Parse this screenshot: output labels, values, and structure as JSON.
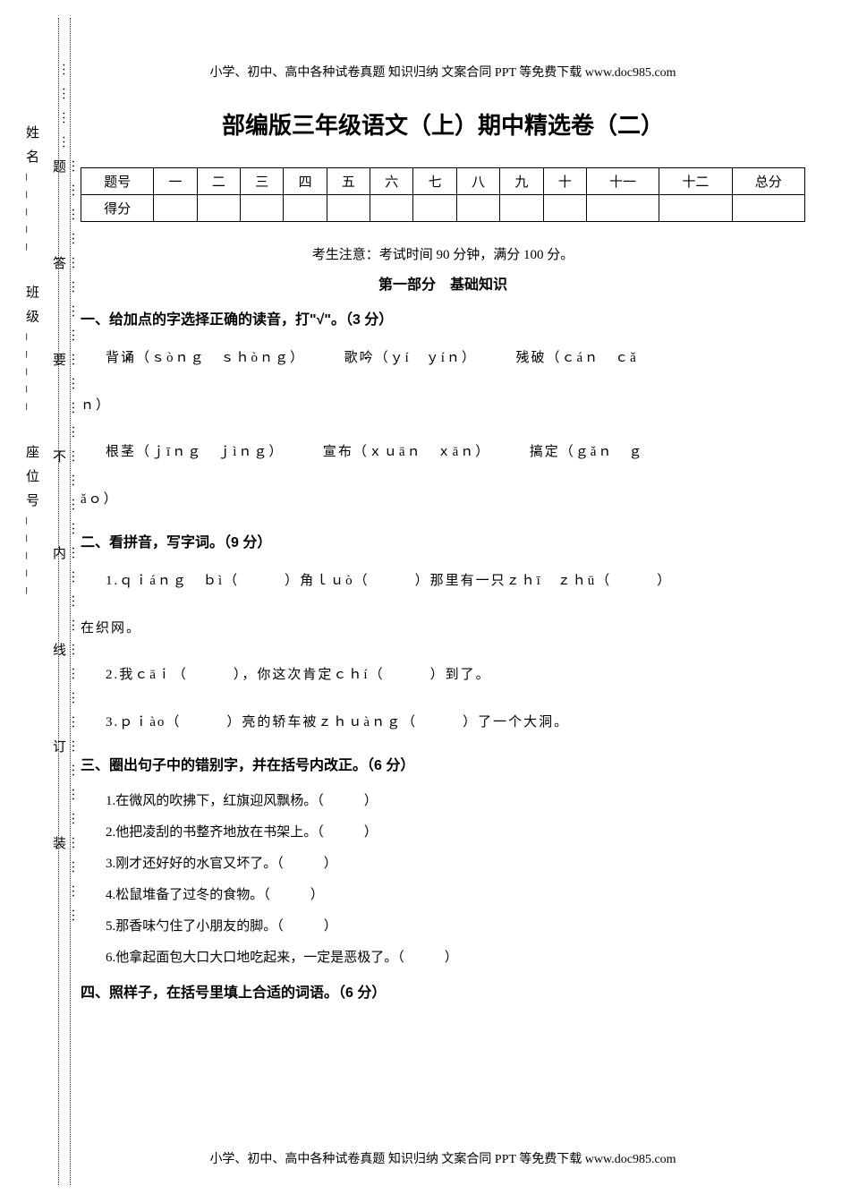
{
  "header": "小学、初中、高中各种试卷真题 知识归纳 文案合同 PPT 等免费下载  www.doc985.com",
  "title": "部编版三年级语文（上）期中精选卷（二）",
  "score_table": {
    "row1": [
      "题号",
      "一",
      "二",
      "三",
      "四",
      "五",
      "六",
      "七",
      "八",
      "九",
      "十",
      "十一",
      "十二",
      "总分"
    ],
    "row2_label": "得分"
  },
  "exam_notice": "考生注意：考试时间 90 分钟，满分 100 分。",
  "section1_title": "第一部分　基础知识",
  "q1": {
    "header": "一、给加点的字选择正确的读音，打\"√\"。（3 分）",
    "line1_a": "背",
    "line1_a_dot": "诵",
    "line1_a_pinyin": "（ｓòｎｇ　ｓｈòｎｇ）",
    "line1_b": "歌",
    "line1_b_dot": "吟",
    "line1_b_pinyin": "（ｙí　ｙíｎ）",
    "line1_c_dot": "残",
    "line1_c": "破（ｃáｎ　ｃǎ",
    "line1_end": "ｎ）",
    "line2_a": "根",
    "line2_a_dot": "茎",
    "line2_a_pinyin": "（ｊīｎｇ　ｊìｎｇ）",
    "line2_b_dot": "宣",
    "line2_b": "布（ｘｕāｎ　ｘāｎ）",
    "line2_c_dot": "搞",
    "line2_c": "定（ｇǎｎ　ｇ",
    "line2_end": "ǎｏ）"
  },
  "q2": {
    "header": "二、看拼音，写字词。（9 分）",
    "item1": "1.ｑｉáｎｇ　ｂì（　　　）角ｌｕò（　　　）那里有一只ｚｈī　ｚｈū（　　　）",
    "item1_cont": "在织网。",
    "item2": "2.我ｃāｉ（　　　），你这次肯定ｃｈí（　　　）到了。",
    "item3": "3.ｐｉào（　　　）亮的轿车被ｚｈｕàｎｇ（　　　）了一个大洞。"
  },
  "q3": {
    "header": "三、圈出句子中的错别字，并在括号内改正。（6 分）",
    "item1": "1.在微风的吹拂下，红旗迎风飘杨。（　　　）",
    "item2": "2.他把凌刮的书整齐地放在书架上。（　　　）",
    "item3": "3.刚才还好好的水官又坏了。（　　　）",
    "item4": "4.松鼠堆备了过冬的食物。（　　　）",
    "item5": "5.那香味勺住了小朋友的脚。（　　　）",
    "item6": "6.他拿起面包大口大口地吃起来，一定是恶极了。（　　　）"
  },
  "q4": {
    "header": "四、照样子，在括号里填上合适的词语。（6 分）"
  },
  "left_margin": {
    "line1": "姓名_____　班级_____　座位号_____",
    "line2_parts": [
      "…………装",
      "…………订",
      "…………线",
      "…………内",
      "…………不",
      "…………要",
      "…………答",
      "…………题",
      "…………"
    ]
  },
  "footer": "小学、初中、高中各种试卷真题 知识归纳 文案合同 PPT 等免费下载  www.doc985.com"
}
